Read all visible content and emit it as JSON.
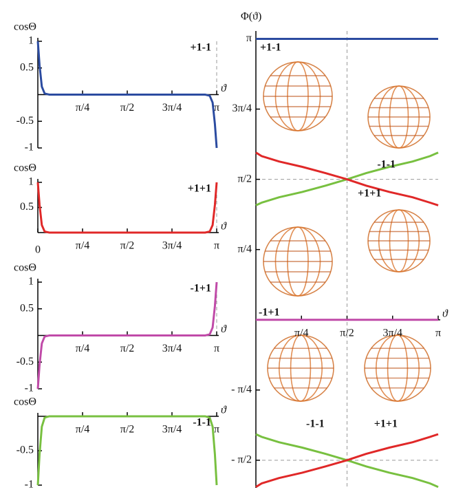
{
  "chart_data": [
    {
      "type": "line",
      "y_label": "cosΘ",
      "x_label": "ϑ",
      "x": [
        0,
        0.03,
        0.07,
        0.12,
        0.2,
        1.57,
        2.94,
        3.02,
        3.07,
        3.11,
        3.1416
      ],
      "series": [
        {
          "name": "+1-1",
          "color": "#2b4ba0",
          "values": [
            1,
            0.55,
            0.15,
            0.02,
            0,
            0,
            0,
            -0.02,
            -0.15,
            -0.55,
            -1
          ]
        }
      ],
      "xlim": [
        0,
        3.1416
      ],
      "ylim": [
        -1,
        1
      ],
      "xticks": [
        {
          "value": 0.7854,
          "label": "π/4"
        },
        {
          "value": 1.5708,
          "label": "π/2"
        },
        {
          "value": 2.3562,
          "label": "3π/4"
        },
        {
          "value": 3.1416,
          "label": "π"
        }
      ],
      "yticks": [
        1,
        0.5,
        -0.5,
        -1
      ]
    },
    {
      "type": "line",
      "y_label": "cosΘ",
      "x_label": "ϑ",
      "x": [
        0,
        0.03,
        0.07,
        0.12,
        0.2,
        1.57,
        2.94,
        3.02,
        3.07,
        3.11,
        3.1416
      ],
      "series": [
        {
          "name": "+1+1",
          "color": "#e02828",
          "values": [
            1,
            0.55,
            0.15,
            0.02,
            0,
            0,
            0,
            0.02,
            0.15,
            0.55,
            1
          ]
        }
      ],
      "xlim": [
        0,
        3.1416
      ],
      "ylim": [
        0,
        1
      ],
      "xticks": [
        0,
        {
          "value": 0.7854,
          "label": "π/4"
        },
        {
          "value": 1.5708,
          "label": "π/2"
        },
        {
          "value": 2.3562,
          "label": "3π/4"
        },
        {
          "value": 3.1416,
          "label": "π"
        }
      ],
      "yticks": [
        1,
        0.5
      ]
    },
    {
      "type": "line",
      "y_label": "cosΘ",
      "x_label": "ϑ",
      "x": [
        0,
        0.03,
        0.07,
        0.12,
        0.2,
        1.57,
        2.94,
        3.02,
        3.07,
        3.11,
        3.1416
      ],
      "series": [
        {
          "name": "-1+1",
          "color": "#c04aa8",
          "values": [
            -1,
            -0.55,
            -0.15,
            -0.02,
            0,
            0,
            0,
            0.02,
            0.15,
            0.55,
            1
          ]
        }
      ],
      "xlim": [
        0,
        3.1416
      ],
      "ylim": [
        -1,
        1
      ],
      "xticks": [
        {
          "value": 0.7854,
          "label": "π/4"
        },
        {
          "value": 1.5708,
          "label": "π/2"
        },
        {
          "value": 2.3562,
          "label": "3π/4"
        },
        {
          "value": 3.1416,
          "label": "π"
        }
      ],
      "yticks": [
        1,
        0.5,
        -0.5,
        -1
      ]
    },
    {
      "type": "line",
      "y_label": "cosΘ",
      "x_label": "ϑ",
      "x": [
        0,
        0.03,
        0.07,
        0.12,
        0.2,
        1.57,
        2.94,
        3.02,
        3.07,
        3.11,
        3.1416
      ],
      "series": [
        {
          "name": "-1-1",
          "color": "#78c040",
          "values": [
            -1,
            -0.55,
            -0.15,
            -0.02,
            0,
            0,
            0,
            -0.02,
            -0.15,
            -0.55,
            -1
          ]
        }
      ],
      "xlim": [
        0,
        3.1416
      ],
      "ylim": [
        -1,
        0
      ],
      "xticks": [
        {
          "value": 0.7854,
          "label": "π/4"
        },
        {
          "value": 1.5708,
          "label": "π/2"
        },
        {
          "value": 2.3562,
          "label": "3π/4"
        },
        {
          "value": 3.1416,
          "label": "π"
        }
      ],
      "yticks": [
        -0.5,
        -1
      ]
    },
    {
      "type": "line",
      "y_label": "Φ(ϑ)",
      "x_label": "ϑ",
      "x": [
        0,
        0.1,
        0.4,
        0.8,
        1.2,
        1.5708,
        1.9,
        2.3,
        2.7,
        3.0,
        3.1416
      ],
      "series": [
        {
          "name": "+1-1",
          "color": "#2b4ba0",
          "values": [
            3.1416,
            3.1416,
            3.1416,
            3.1416,
            3.1416,
            3.1416,
            3.1416,
            3.1416,
            3.1416,
            3.1416,
            3.1416
          ]
        },
        {
          "name": "-1-1",
          "color": "#78c040",
          "values": [
            1.28,
            1.31,
            1.37,
            1.43,
            1.5,
            1.5708,
            1.64,
            1.71,
            1.77,
            1.83,
            1.87
          ]
        },
        {
          "name": "+1+1",
          "color": "#e02828",
          "values": [
            1.87,
            1.83,
            1.77,
            1.71,
            1.64,
            1.5708,
            1.5,
            1.43,
            1.37,
            1.31,
            1.28
          ]
        },
        {
          "name": "-1+1",
          "color": "#c04aa8",
          "values": [
            0,
            0,
            0,
            0,
            0,
            0,
            0,
            0,
            0,
            0,
            0
          ]
        },
        {
          "name": "-1-1",
          "color": "#78c040",
          "values": [
            -1.28,
            -1.31,
            -1.37,
            -1.43,
            -1.5,
            -1.5708,
            -1.64,
            -1.71,
            -1.77,
            -1.83,
            -1.87
          ]
        },
        {
          "name": "+1+1",
          "color": "#e02828",
          "values": [
            -1.87,
            -1.83,
            -1.77,
            -1.71,
            -1.64,
            -1.5708,
            -1.5,
            -1.43,
            -1.37,
            -1.31,
            -1.28
          ]
        }
      ],
      "xlim": [
        0,
        3.1416
      ],
      "ylim": [
        -1.88,
        3.23
      ],
      "xticks": [
        {
          "value": 0.7854,
          "label": "π/4"
        },
        {
          "value": 1.5708,
          "label": "π/2"
        },
        {
          "value": 2.3562,
          "label": "3π/4"
        },
        {
          "value": 3.1416,
          "label": "π"
        }
      ],
      "yticks": [
        {
          "value": 3.1416,
          "label": "π"
        },
        {
          "value": 2.3562,
          "label": "3π/4"
        },
        {
          "value": 1.5708,
          "label": "π/2"
        },
        {
          "value": 0.7854,
          "label": "π/4"
        },
        {
          "value": -0.7854,
          "label": "- π/4"
        },
        {
          "value": -1.5708,
          "label": "- π/2"
        }
      ]
    }
  ]
}
